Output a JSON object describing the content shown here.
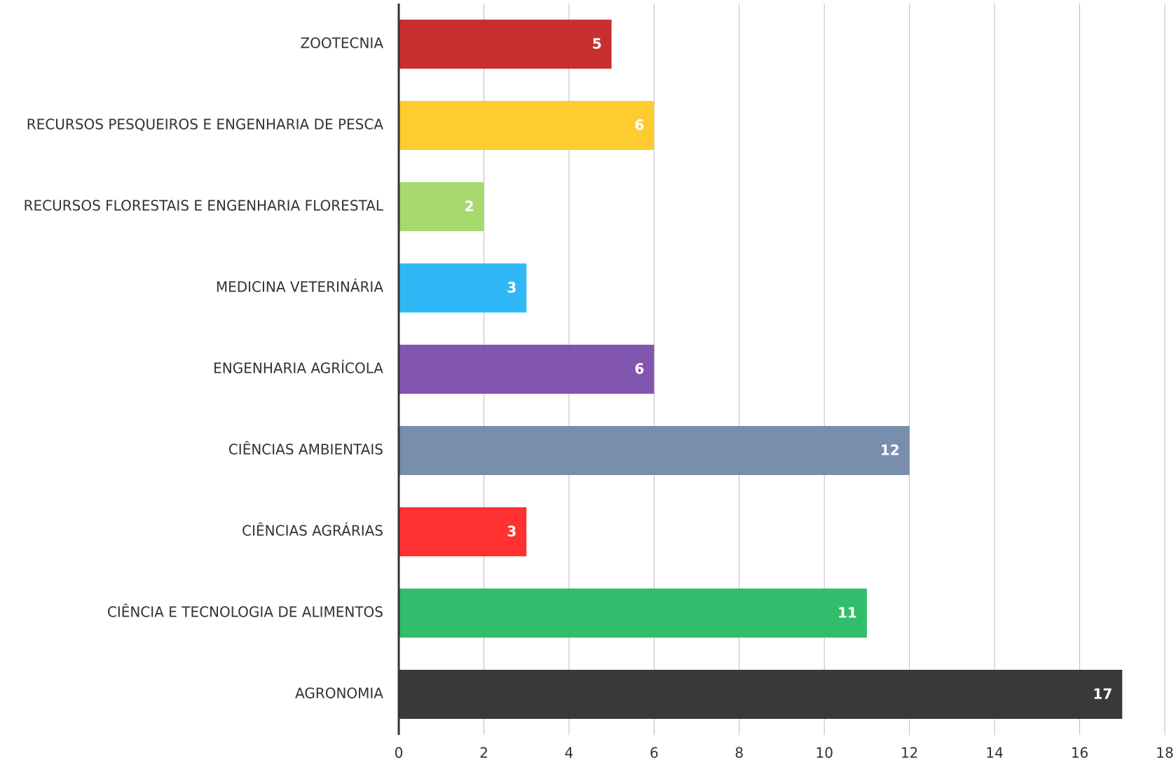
{
  "chart_data": {
    "type": "bar",
    "orientation": "horizontal",
    "categories": [
      "ZOOTECNIA",
      "RECURSOS PESQUEIROS E ENGENHARIA DE PESCA",
      "RECURSOS FLORESTAIS E ENGENHARIA FLORESTAL",
      "MEDICINA VETERINÁRIA",
      "ENGENHARIA AGRÍCOLA",
      "CIÊNCIAS AMBIENTAIS",
      "CIÊNCIAS AGRÁRIAS",
      "CIÊNCIA E TECNOLOGIA DE ALIMENTOS",
      "AGRONOMIA"
    ],
    "values": [
      5,
      6,
      2,
      3,
      6,
      12,
      3,
      11,
      17
    ],
    "colors": [
      "#c62828",
      "#ffca28",
      "#a5d86a",
      "#29b6f6",
      "#7e4fab",
      "#7589a9",
      "#ff2a2a",
      "#2abb67",
      "#333333"
    ],
    "xlim": [
      0,
      18
    ],
    "xticks": [
      0,
      2,
      4,
      6,
      8,
      10,
      12,
      14,
      16,
      18
    ],
    "grid": true
  }
}
